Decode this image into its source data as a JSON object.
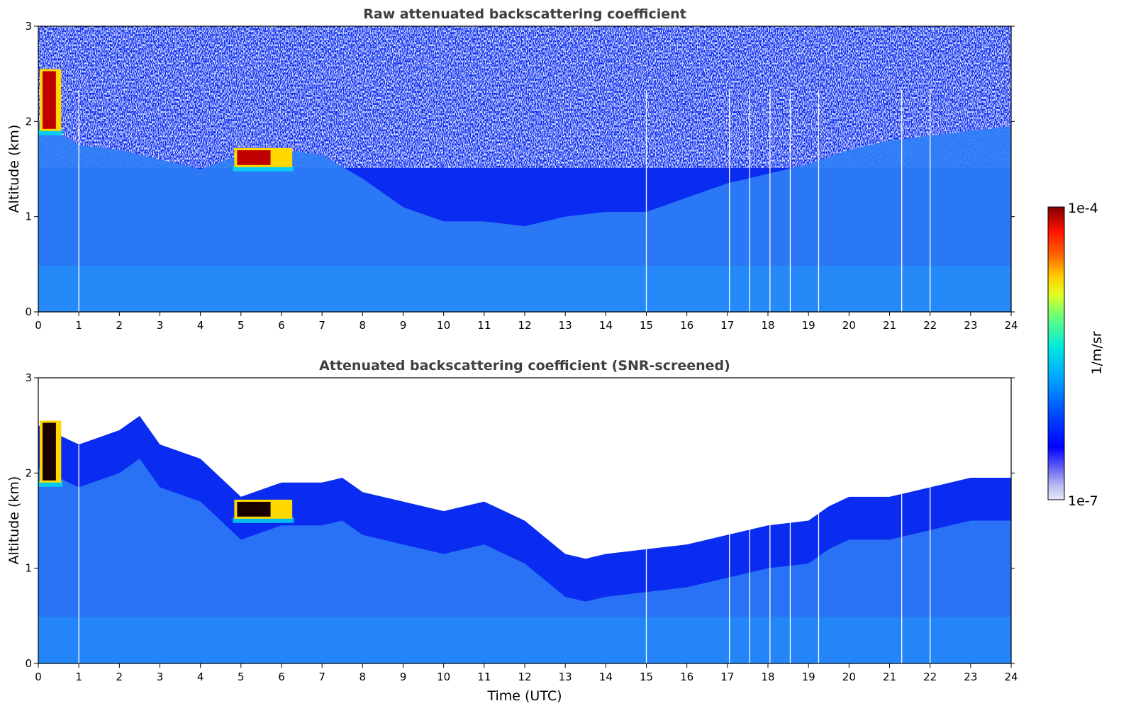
{
  "chart_data": [
    {
      "type": "heatmap",
      "title": "Raw attenuated backscattering coefficient",
      "xlabel": "",
      "ylabel": "Altitude (km)",
      "xlim": [
        0,
        24
      ],
      "ylim": [
        0,
        3
      ],
      "xticks": [
        "0",
        "1",
        "2",
        "3",
        "4",
        "5",
        "6",
        "7",
        "8",
        "9",
        "10",
        "11",
        "12",
        "13",
        "14",
        "15",
        "16",
        "17",
        "18",
        "19",
        "20",
        "21",
        "22",
        "23",
        "24"
      ],
      "yticks": [
        "0",
        "1",
        "2",
        "3"
      ],
      "grid": false,
      "colorscale": "log",
      "screened": false,
      "boundary_layer_top_km": {
        "time_utc": [
          0,
          1,
          2,
          3,
          4,
          5,
          6,
          7,
          8,
          9,
          10,
          11,
          12,
          13,
          14,
          15,
          16,
          17,
          18,
          19,
          20,
          21,
          22,
          23,
          24
        ],
        "altitude_km": [
          2.0,
          1.75,
          1.7,
          1.6,
          1.5,
          1.65,
          1.7,
          1.65,
          1.4,
          1.1,
          0.95,
          0.95,
          0.9,
          1.0,
          1.05,
          1.05,
          1.2,
          1.35,
          1.45,
          1.55,
          1.7,
          1.8,
          1.85,
          1.9,
          1.95
        ]
      },
      "cloud_layers": [
        {
          "time_start_utc": 0.0,
          "time_end_utc": 0.6,
          "base_km": 1.9,
          "top_km": 2.55
        },
        {
          "time_start_utc": 4.8,
          "time_end_utc": 6.3,
          "base_km": 1.52,
          "top_km": 1.72
        }
      ],
      "missing_profiles_utc": [
        1.0,
        15.0,
        17.05,
        17.55,
        18.05,
        18.55,
        19.25,
        21.3,
        22.0
      ]
    },
    {
      "type": "heatmap",
      "title": "Attenuated backscattering coefficient (SNR-screened)",
      "xlabel": "Time (UTC)",
      "ylabel": "Altitude (km)",
      "xlim": [
        0,
        24
      ],
      "ylim": [
        0,
        3
      ],
      "xticks": [
        "0",
        "1",
        "2",
        "3",
        "4",
        "5",
        "6",
        "7",
        "8",
        "9",
        "10",
        "11",
        "12",
        "13",
        "14",
        "15",
        "16",
        "17",
        "18",
        "19",
        "20",
        "21",
        "22",
        "23",
        "24"
      ],
      "yticks": [
        "0",
        "1",
        "2",
        "3"
      ],
      "grid": false,
      "colorscale": "log",
      "screened": true,
      "signal_top_km": {
        "time_utc": [
          0,
          1,
          2,
          2.5,
          3,
          4,
          5,
          6,
          7,
          7.5,
          8,
          9,
          10,
          11,
          12,
          13,
          13.5,
          14,
          15,
          16,
          17,
          18,
          19,
          19.5,
          20,
          21,
          22,
          23,
          24
        ],
        "altitude_km": [
          2.5,
          2.3,
          2.45,
          2.6,
          2.3,
          2.15,
          1.75,
          1.9,
          1.9,
          1.95,
          1.8,
          1.7,
          1.6,
          1.7,
          1.5,
          1.15,
          1.1,
          1.15,
          1.2,
          1.25,
          1.35,
          1.45,
          1.5,
          1.65,
          1.75,
          1.75,
          1.85,
          1.95,
          1.95
        ]
      },
      "cloud_layers": [
        {
          "time_start_utc": 0.0,
          "time_end_utc": 0.6,
          "base_km": 1.9,
          "top_km": 2.55
        },
        {
          "time_start_utc": 4.8,
          "time_end_utc": 6.3,
          "base_km": 1.52,
          "top_km": 1.72
        }
      ],
      "missing_profiles_utc": [
        1.0,
        15.0,
        17.05,
        17.55,
        18.05,
        18.55,
        19.25,
        21.3,
        22.0
      ]
    }
  ],
  "colorbar": {
    "label": "1/m/sr",
    "max_label": "1e-4",
    "min_label": "1e-7",
    "colors": [
      "#e8e8f8",
      "#b8b8f0",
      "#8080f0",
      "#0000ff",
      "#0038ff",
      "#0080ff",
      "#00b8ff",
      "#00e8e0",
      "#40ff90",
      "#a0ff40",
      "#ffff00",
      "#ffb000",
      "#ff6000",
      "#ff1000",
      "#c00000",
      "#800000"
    ]
  },
  "palette": {
    "background_white": "#ffffff",
    "clear_air_blue": "#0a2cf0",
    "boundary_layer_blue": "#2f7ff6",
    "aerosol_cyan": "#1aa9fb"
  }
}
